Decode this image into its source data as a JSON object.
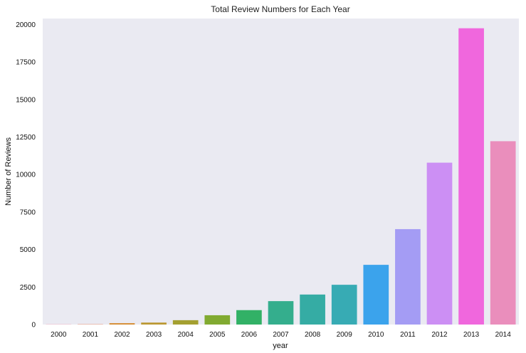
{
  "chart_data": {
    "type": "bar",
    "title": "Total Review Numbers for Each Year",
    "xlabel": "year",
    "ylabel": "Number of Reviews",
    "categories": [
      "2000",
      "2001",
      "2002",
      "2003",
      "2004",
      "2005",
      "2006",
      "2007",
      "2008",
      "2009",
      "2010",
      "2011",
      "2012",
      "2013",
      "2014"
    ],
    "values": [
      10,
      20,
      90,
      130,
      290,
      620,
      960,
      1560,
      2000,
      2650,
      3980,
      6360,
      10790,
      19750,
      12220
    ],
    "colors": [
      "#f77189",
      "#e7805e",
      "#d58c32",
      "#bb9832",
      "#a4a031",
      "#81aa31",
      "#32b166",
      "#34ae8d",
      "#35aca4",
      "#37abb4",
      "#3ba3ec",
      "#a49cf4",
      "#cc8ff4",
      "#f067dd",
      "#ea8ebc"
    ],
    "ylim": [
      0,
      20400
    ],
    "yticks": [
      0,
      2500,
      5000,
      7500,
      10000,
      12500,
      15000,
      17500,
      20000
    ],
    "grid": false,
    "background": "#eaeaf2"
  }
}
